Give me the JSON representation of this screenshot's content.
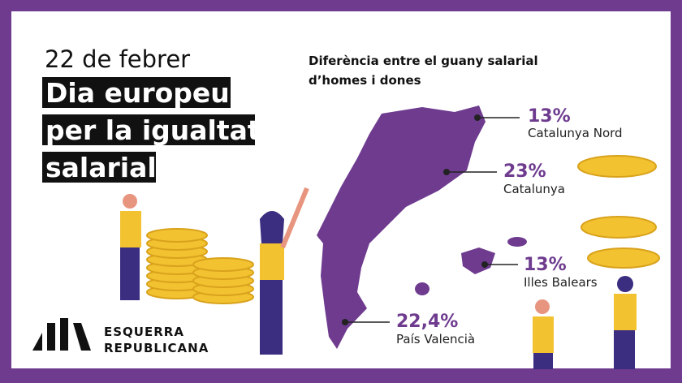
{
  "header": {
    "date": "22 de febrer",
    "title_lines": [
      "Dia europeu",
      "per la igualtat",
      "salarial"
    ]
  },
  "map": {
    "title_lines": [
      "Diferència entre el guany salarial",
      "d’homes i dones"
    ],
    "regions": [
      {
        "value": "13%",
        "name": "Catalunya Nord"
      },
      {
        "value": "23%",
        "name": "Catalunya"
      },
      {
        "value": "13%",
        "name": "Illes Balears"
      },
      {
        "value": "22,4%",
        "name": "País Valencià"
      }
    ]
  },
  "logo": {
    "lines": [
      "ESQUERRA",
      "REPUBLICANA"
    ]
  }
}
